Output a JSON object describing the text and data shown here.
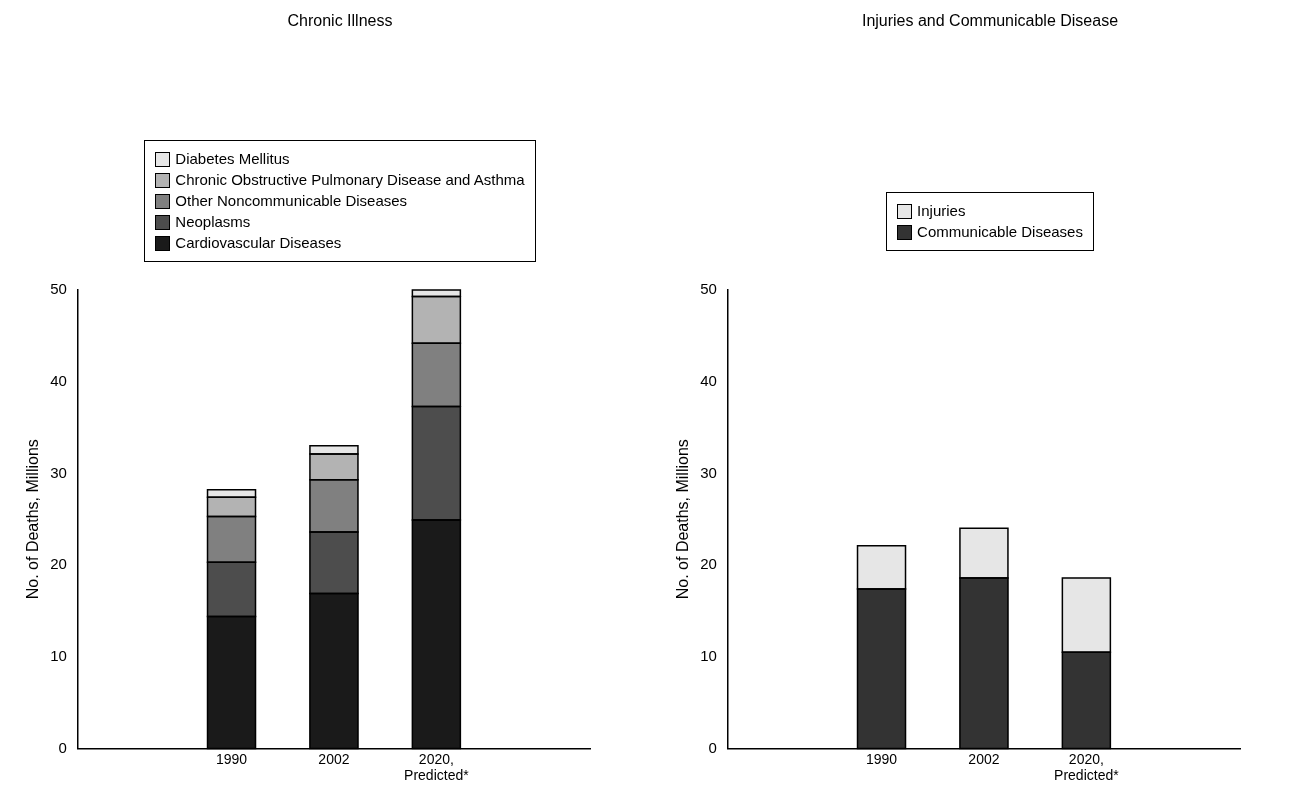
{
  "chart_data": [
    {
      "type": "bar",
      "title": "Chronic Illness",
      "ylabel": "No. of Deaths, Millions",
      "categories": [
        "1990",
        "2002",
        "2020, Predicted*"
      ],
      "stacked": true,
      "ylim": [
        0,
        50
      ],
      "yticks": [
        0,
        10,
        20,
        30,
        40,
        50
      ],
      "grid": false,
      "legend": "top",
      "series": [
        {
          "name": "Cardiovascular Diseases",
          "color": "#1a1a1a",
          "values": [
            14.4,
            16.9,
            24.9
          ]
        },
        {
          "name": "Neoplasms",
          "color": "#4d4d4d",
          "values": [
            5.9,
            6.7,
            12.4
          ]
        },
        {
          "name": "Other Noncommunicable Diseases",
          "color": "#808080",
          "values": [
            5.0,
            5.7,
            6.9
          ]
        },
        {
          "name": "Chronic Obstructive Pulmonary Disease and Asthma",
          "color": "#b3b3b3",
          "values": [
            2.1,
            2.8,
            5.1
          ]
        },
        {
          "name": "Diabetes Mellitus",
          "color": "#e6e6e6",
          "values": [
            0.8,
            0.9,
            0.7
          ]
        }
      ]
    },
    {
      "type": "bar",
      "title": "Injuries and Communicable Disease",
      "ylabel": "No. of Deaths, Millions",
      "categories": [
        "1990",
        "2002",
        "2020, Predicted*"
      ],
      "stacked": true,
      "ylim": [
        0,
        50
      ],
      "yticks": [
        0,
        10,
        20,
        30,
        40,
        50
      ],
      "grid": false,
      "legend": "top",
      "series": [
        {
          "name": "Communicable Diseases",
          "color": "#333333",
          "values": [
            17.4,
            18.6,
            10.5
          ]
        },
        {
          "name": "Injuries",
          "color": "#e6e6e6",
          "values": [
            4.7,
            5.4,
            8.1
          ]
        }
      ]
    }
  ]
}
